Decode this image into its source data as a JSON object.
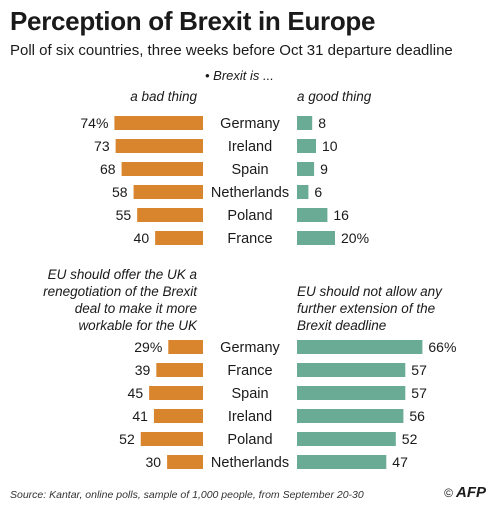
{
  "title": "Perception of Brexit in Europe",
  "subtitle": "Poll of six countries, three weeks before Oct 31 departure deadline",
  "question": "• Brexit is ...",
  "colors": {
    "left": "#d9852e",
    "right": "#6aab96",
    "text": "#1a1a1a"
  },
  "source": "Source: Kantar, online polls,  sample of 1,000 people, from September 20-30",
  "credit": {
    "copyright": "©",
    "agency": "AFP"
  },
  "chart_data": [
    {
      "type": "bar",
      "left_header": "a bad thing",
      "right_header": "a good thing",
      "categories": [
        "Germany",
        "Ireland",
        "Spain",
        "Netherlands",
        "Poland",
        "France"
      ],
      "series": [
        {
          "name": "a bad thing",
          "values": [
            74,
            73,
            68,
            58,
            55,
            40
          ],
          "labels": [
            "74%",
            "73",
            "68",
            "58",
            "55",
            "40"
          ]
        },
        {
          "name": "a good thing",
          "values": [
            8,
            10,
            9,
            6,
            16,
            20
          ],
          "labels": [
            "8",
            "10",
            "9",
            "6",
            "16",
            "20%"
          ]
        }
      ]
    },
    {
      "type": "bar",
      "left_header": "EU should offer the UK a renegotiation of the Brexit deal to make it more workable for the UK",
      "right_header": "EU should not allow any further extension of the Brexit deadline",
      "categories": [
        "Germany",
        "France",
        "Spain",
        "Ireland",
        "Poland",
        "Netherlands"
      ],
      "series": [
        {
          "name": "EU should offer the UK a renegotiation of the Brexit deal to make it more workable for the UK",
          "values": [
            29,
            39,
            45,
            41,
            52,
            30
          ],
          "labels": [
            "29%",
            "39",
            "45",
            "41",
            "52",
            "30"
          ]
        },
        {
          "name": "EU should not allow any further extension of the Brexit deadline",
          "values": [
            66,
            57,
            57,
            56,
            52,
            47
          ],
          "labels": [
            "66%",
            "57",
            "57",
            "56",
            "52",
            "47"
          ]
        }
      ]
    }
  ]
}
